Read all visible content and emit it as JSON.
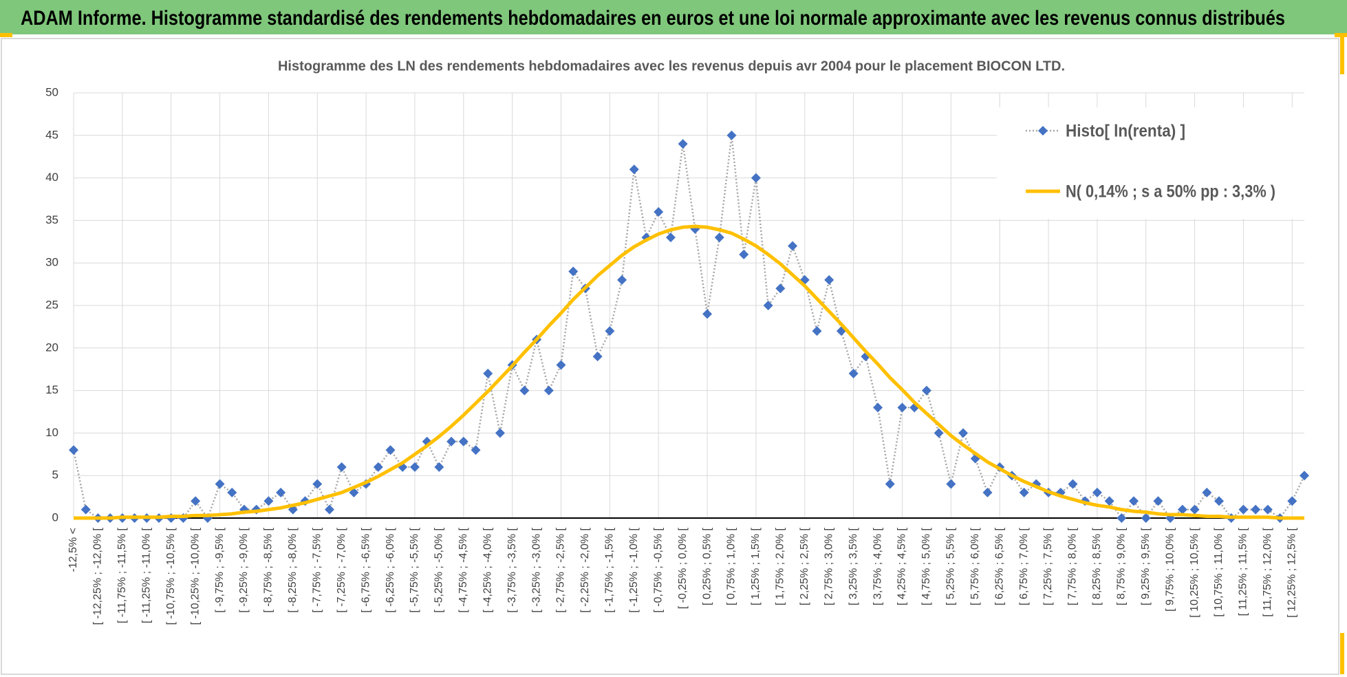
{
  "header": {
    "title": "ADAM Informe. Histogramme standardisé des rendements hebdomadaires en euros et une loi normale approximante avec les revenus connus distribués"
  },
  "chart_data": {
    "type": "line",
    "title": "Histogramme des LN des rendements hebdomadaires avec les revenus depuis avr 2004 pour le placement BIOCON LTD.",
    "categories": [
      "-12,5% <",
      null,
      "[ -12,25% ; -12,0% [",
      null,
      "[ -11,75% ; -11,5% [",
      null,
      "[ -11,25% ; -11,0% [",
      null,
      "[ -10,75% ; -10,5% [",
      null,
      "[ -10,25% ; -10,0% [",
      null,
      "[ -9,75% ; -9,5% [",
      null,
      "[ -9,25% ; -9,0% [",
      null,
      "[ -8,75% ; -8,5% [",
      null,
      "[ -8,25% ; -8,0% [",
      null,
      "[ -7,75% ; -7,5% [",
      null,
      "[ -7,25% ; -7,0% [",
      null,
      "[ -6,75% ; -6,5% [",
      null,
      "[ -6,25% ; -6,0% [",
      null,
      "[ -5,75% ; -5,5% [",
      null,
      "[ -5,25% ; -5,0% [",
      null,
      "[ -4,75% ; -4,5% [",
      null,
      "[ -4,25% ; -4,0% [",
      null,
      "[ -3,75% ; -3,5% [",
      null,
      "[ -3,25% ; -3,0% [",
      null,
      "[ -2,75% ; -2,5% [",
      null,
      "[ -2,25% ; -2,0% [",
      null,
      "[ -1,75% ; -1,5% [",
      null,
      "[ -1,25% ; -1,0% [",
      null,
      "[ -0,75% ; -0,5% [",
      null,
      "[ -0,25% ; 0,0% [",
      null,
      "[ 0,25% ; 0,5% [",
      null,
      "[ 0,75% ; 1,0% [",
      null,
      "[ 1,25% ; 1,5% [",
      null,
      "[ 1,75% ; 2,0% [",
      null,
      "[ 2,25% ; 2,5% [",
      null,
      "[ 2,75% ; 3,0% [",
      null,
      "[ 3,25% ; 3,5% [",
      null,
      "[ 3,75% ; 4,0% [",
      null,
      "[ 4,25% ; 4,5% [",
      null,
      "[ 4,75% ; 5,0% [",
      null,
      "[ 5,25% ; 5,5% [",
      null,
      "[ 5,75% ; 6,0% [",
      null,
      "[ 6,25% ; 6,5% [",
      null,
      "[ 6,75% ; 7,0% [",
      null,
      "[ 7,25% ; 7,5% [",
      null,
      "[ 7,75% ; 8,0% [",
      null,
      "[ 8,25% ; 8,5% [",
      null,
      "[ 8,75% ; 9,0% [",
      null,
      "[ 9,25% ; 9,5% [",
      null,
      "[ 9,75% ; 10,0% [",
      null,
      "[ 10,25% ; 10,5% [",
      null,
      "[ 10,75% ; 11,0% [",
      null,
      "[ 11,25% ; 11,5% [",
      null,
      "[ 11,75% ; 12,0% [",
      null,
      "[ 12,25% ; 12,5% [",
      null
    ],
    "series": [
      {
        "name": "Histo[ ln(renta) ]",
        "color": "#4472c4",
        "line_color": "#a5a5a5",
        "marker": "diamond",
        "values": [
          8,
          1,
          0,
          0,
          0,
          0,
          0,
          0,
          0,
          0,
          2,
          0,
          4,
          3,
          1,
          1,
          2,
          3,
          1,
          2,
          4,
          1,
          6,
          3,
          4,
          6,
          8,
          6,
          6,
          9,
          6,
          9,
          9,
          8,
          17,
          10,
          18,
          15,
          21,
          15,
          18,
          29,
          27,
          19,
          22,
          28,
          41,
          33,
          36,
          33,
          44,
          34,
          24,
          33,
          45,
          31,
          40,
          25,
          27,
          32,
          28,
          22,
          28,
          22,
          17,
          19,
          13,
          4,
          13,
          13,
          15,
          10,
          4,
          10,
          7,
          3,
          6,
          5,
          3,
          4,
          3,
          3,
          4,
          2,
          3,
          2,
          0,
          2,
          0,
          2,
          0,
          1,
          1,
          3,
          2,
          0,
          1,
          1,
          1,
          0,
          2,
          5
        ]
      },
      {
        "name": "N( 0,14% ; s a 50% pp : 3,3% )",
        "color": "#ffc000",
        "marker": "none",
        "values": [
          0.0,
          0.0,
          0.0,
          0.0,
          0.1,
          0.1,
          0.1,
          0.1,
          0.2,
          0.2,
          0.3,
          0.3,
          0.4,
          0.5,
          0.7,
          0.8,
          1.0,
          1.2,
          1.5,
          1.8,
          2.2,
          2.6,
          3.0,
          3.6,
          4.2,
          4.9,
          5.7,
          6.5,
          7.5,
          8.5,
          9.6,
          10.8,
          12.1,
          13.5,
          14.9,
          16.4,
          17.9,
          19.5,
          21.0,
          22.6,
          24.1,
          25.7,
          27.1,
          28.5,
          29.7,
          30.9,
          31.9,
          32.7,
          33.4,
          33.9,
          34.2,
          34.3,
          34.2,
          33.9,
          33.5,
          32.8,
          32.0,
          31.0,
          29.9,
          28.6,
          27.3,
          25.8,
          24.3,
          22.8,
          21.2,
          19.6,
          18.1,
          16.5,
          15.1,
          13.6,
          12.3,
          11.0,
          9.7,
          8.6,
          7.6,
          6.6,
          5.8,
          5.0,
          4.3,
          3.7,
          3.1,
          2.6,
          2.2,
          1.8,
          1.5,
          1.3,
          1.0,
          0.8,
          0.7,
          0.5,
          0.4,
          0.4,
          0.3,
          0.2,
          0.2,
          0.1,
          0.1,
          0.1,
          0.1,
          0.0,
          0.0,
          0.0
        ]
      }
    ],
    "ylim": [
      0,
      50
    ],
    "yticks": [
      0,
      5,
      10,
      15,
      20,
      25,
      30,
      35,
      40,
      45,
      50
    ],
    "grid": true,
    "legend": "upper right"
  }
}
